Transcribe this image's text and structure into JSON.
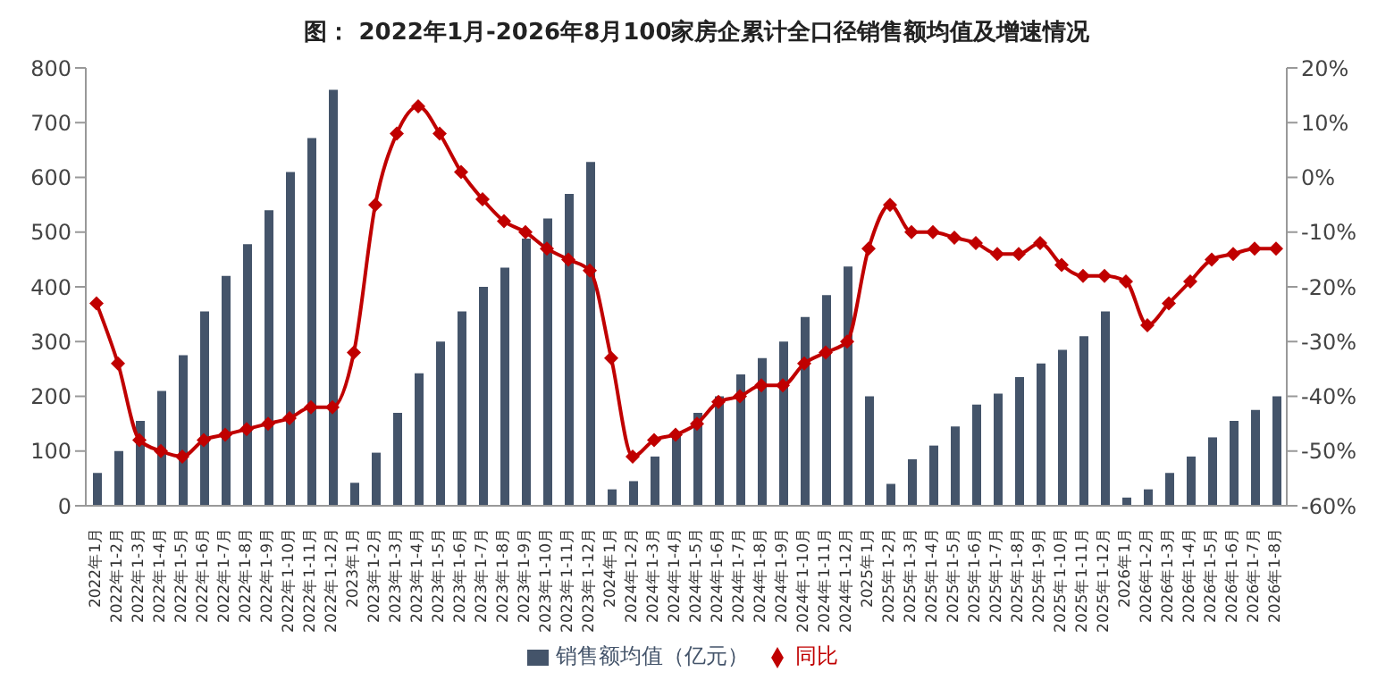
{
  "chart_data": {
    "type": "bar",
    "title": "图：  2022年1月-2026年8月100家房企累计全口径销售额均值及增速情况",
    "categories": [
      "2022年1月",
      "2022年1-2月",
      "2022年1-3月",
      "2022年1-4月",
      "2022年1-5月",
      "2022年1-6月",
      "2022年1-7月",
      "2022年1-8月",
      "2022年1-9月",
      "2022年1-10月",
      "2022年1-11月",
      "2022年1-12月",
      "2023年1月",
      "2023年1-2月",
      "2023年1-3月",
      "2023年1-4月",
      "2023年1-5月",
      "2023年1-6月",
      "2023年1-7月",
      "2023年1-8月",
      "2023年1-9月",
      "2023年1-10月",
      "2023年1-11月",
      "2023年1-12月",
      "2024年1月",
      "2024年1-2月",
      "2024年1-3月",
      "2024年1-4月",
      "2024年1-5月",
      "2024年1-6月",
      "2024年1-7月",
      "2024年1-8月",
      "2024年1-9月",
      "2024年1-10月",
      "2024年1-11月",
      "2024年1-12月",
      "2025年1月",
      "2025年1-2月",
      "2025年1-3月",
      "2025年1-4月",
      "2025年1-5月",
      "2025年1-6月",
      "2025年1-7月",
      "2025年1-8月",
      "2025年1-9月",
      "2025年1-10月",
      "2025年1-11月",
      "2025年1-12月",
      "2026年1月",
      "2026年1-2月",
      "2026年1-3月",
      "2026年1-4月",
      "2026年1-5月",
      "2026年1-6月",
      "2026年1-7月",
      "2026年1-8月"
    ],
    "series": [
      {
        "name": "销售额均值（亿元）",
        "color": "#44546a",
        "values": [
          60,
          100,
          155,
          210,
          275,
          355,
          420,
          478,
          540,
          610,
          672,
          760,
          42,
          97,
          170,
          242,
          300,
          355,
          400,
          435,
          488,
          525,
          570,
          628,
          30,
          45,
          90,
          130,
          170,
          200,
          240,
          270,
          300,
          345,
          385,
          437,
          200,
          40,
          85,
          110,
          145,
          185,
          205,
          235,
          260,
          285,
          310,
          355,
          15,
          30,
          60,
          90,
          125,
          155,
          175,
          200
        ]
      },
      {
        "name": "同比",
        "type": "line",
        "axis": "y2",
        "color": "#c00000",
        "values": [
          -23,
          -34,
          -48,
          -50,
          -51,
          -48,
          -47,
          -46,
          -45,
          -44,
          -42,
          -42,
          -32,
          -5,
          8,
          13,
          8,
          1,
          -4,
          -8,
          -10,
          -13,
          -15,
          -17,
          -33,
          -51,
          -48,
          -47,
          -45,
          -41,
          -40,
          -38,
          -38,
          -34,
          -32,
          -30,
          -13,
          -5,
          -10,
          -10,
          -11,
          -12,
          -14,
          -14,
          -12,
          -16,
          -18,
          -18,
          -19,
          -27,
          -23,
          -19,
          -15,
          -14,
          -13,
          -13
        ]
      }
    ],
    "ylim": [
      0,
      800
    ],
    "yticks": [
      0,
      100,
      200,
      300,
      400,
      500,
      600,
      700,
      800
    ],
    "y2lim": [
      -60,
      20
    ],
    "y2ticks": [
      {
        "value": -60,
        "label": "-60%"
      },
      {
        "value": -50,
        "label": "-50%"
      },
      {
        "value": -40,
        "label": "-40%"
      },
      {
        "value": -30,
        "label": "-30%"
      },
      {
        "value": -20,
        "label": "-20%"
      },
      {
        "value": -10,
        "label": "-10%"
      },
      {
        "value": 0,
        "label": "0%"
      },
      {
        "value": 10,
        "label": "10%"
      },
      {
        "value": 20,
        "label": "20%"
      }
    ],
    "marker": "diamond",
    "legend": "bottom"
  }
}
